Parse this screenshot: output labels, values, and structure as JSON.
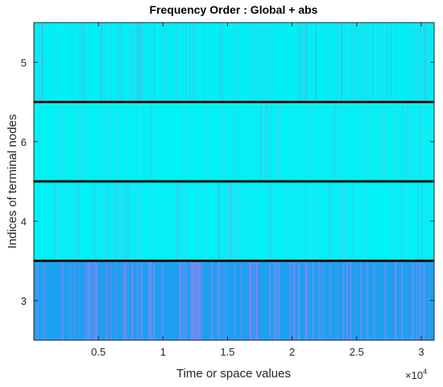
{
  "chart_data": {
    "type": "heatmap",
    "title": "Frequency Order : Global + abs",
    "xlabel": "Time or space values",
    "ylabel": "Indices of terminal nodes",
    "x_exponent_base": "×10",
    "x_exponent_power": "4",
    "xlim": [
      0,
      31000
    ],
    "x_ticks": [
      {
        "value": 5000,
        "label": "0.5"
      },
      {
        "value": 10000,
        "label": "1"
      },
      {
        "value": 15000,
        "label": "1.5"
      },
      {
        "value": 20000,
        "label": "2"
      },
      {
        "value": 25000,
        "label": "2.5"
      },
      {
        "value": 30000,
        "label": "3"
      }
    ],
    "rows": [
      {
        "label": "5",
        "color": "#00f0f5",
        "variant_color": "#26d9f0",
        "variant_color_2": "#33c6ee"
      },
      {
        "label": "6",
        "color": "#00f2f5",
        "variant_color": "#1ee6f2",
        "variant_color_2": "#2fd2ee"
      },
      {
        "label": "4",
        "color": "#00f2f6",
        "variant_color": "#22e2f2",
        "variant_color_2": "#38ccef"
      },
      {
        "label": "3",
        "color": "#1ea0f0",
        "variant_color": "#6f8ef2",
        "variant_color_2": "#9d78ee"
      }
    ],
    "separator_color": "#111111",
    "grid": false,
    "legend": "none"
  }
}
